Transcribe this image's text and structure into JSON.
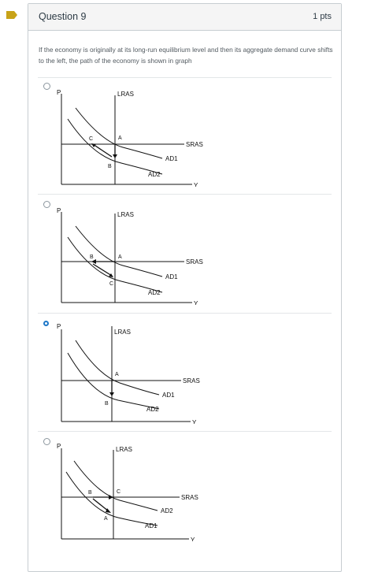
{
  "question": {
    "title": "Question 9",
    "points": "1 pts",
    "text": "If the economy is originally at its long-run equilibrium level and then its aggregate demand curve shifts to the left, the path of the economy is shown in graph"
  },
  "options": [
    {
      "selected": false,
      "labels": {
        "axis_y": "P",
        "axis_x": "Y",
        "lras": "LRAS",
        "sras": "SRAS",
        "ad_upper": "AD1",
        "ad_lower": "AD2",
        "pt_top": "A",
        "pt_left": "C",
        "pt_low": "B"
      }
    },
    {
      "selected": false,
      "labels": {
        "axis_y": "P",
        "axis_x": "Y",
        "lras": "LRAS",
        "sras": "SRAS",
        "ad_upper": "AD1",
        "ad_lower": "AD2",
        "pt_top": "A",
        "pt_left": "B",
        "pt_low": "C"
      }
    },
    {
      "selected": true,
      "labels": {
        "axis_y": "P",
        "axis_x": "Y",
        "lras": "LRAS",
        "sras": "SRAS",
        "ad_upper": "AD1",
        "ad_lower": "AD2",
        "pt_top": "A",
        "pt_low": "B"
      }
    },
    {
      "selected": false,
      "labels": {
        "axis_y": "P",
        "axis_x": "Y",
        "lras": "LRAS",
        "sras": "SRAS",
        "ad_upper": "AD2",
        "ad_lower": "AD1",
        "pt_top": "C",
        "pt_left": "B",
        "pt_low": "A"
      }
    }
  ],
  "colors": {
    "marker": "#c8a318",
    "selected_radio": "#1e78c8",
    "card_border": "#c7cdd1",
    "header_bg": "#f5f5f5"
  }
}
